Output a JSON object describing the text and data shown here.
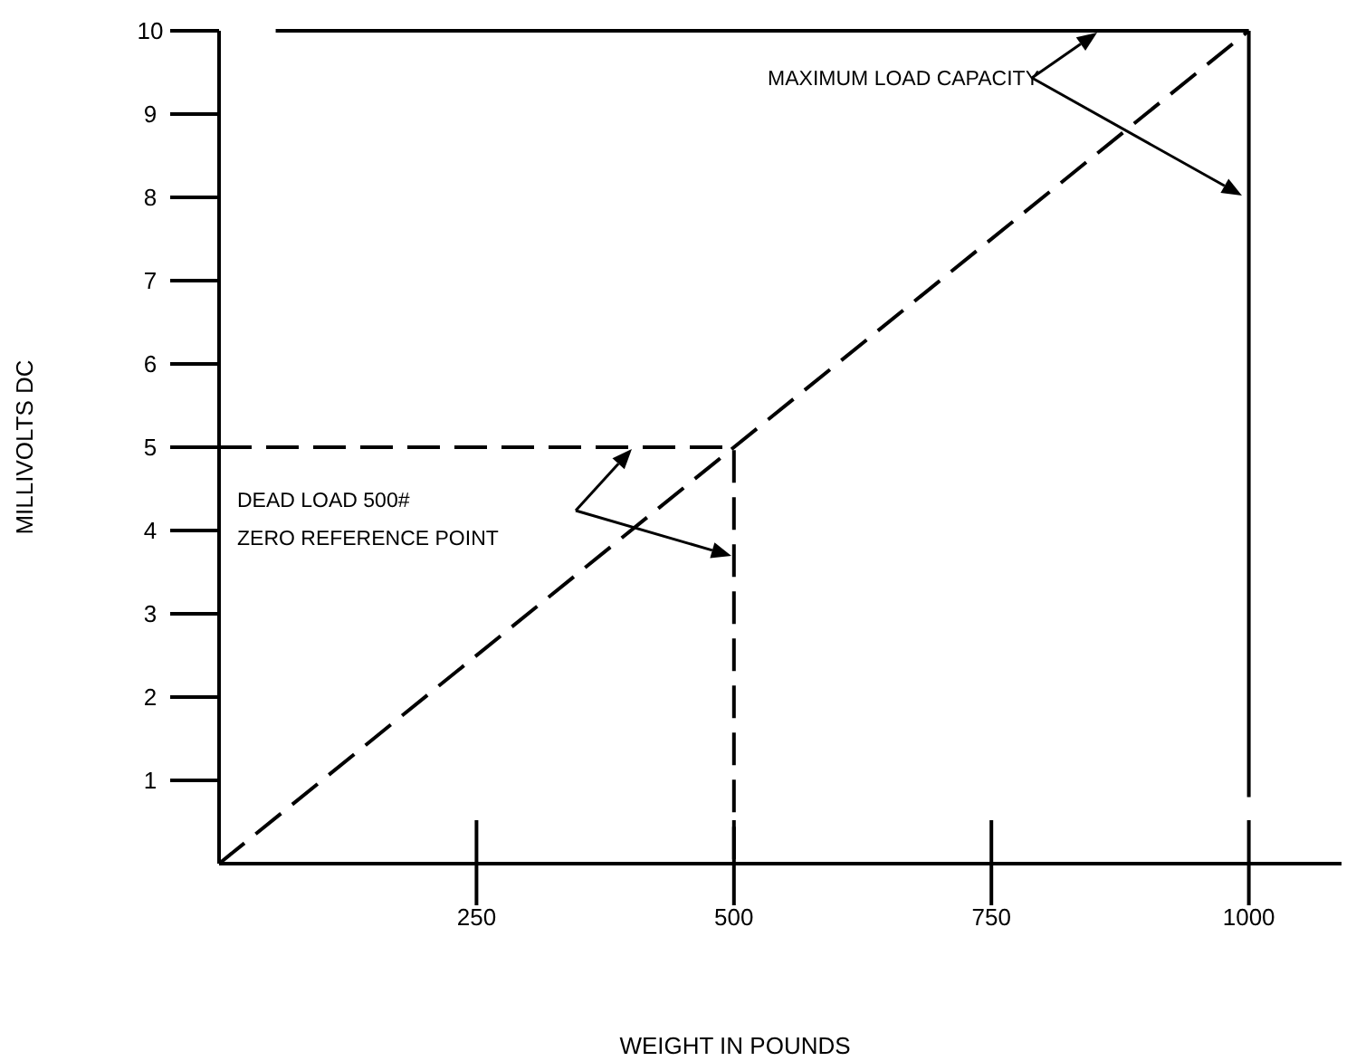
{
  "chart_data": {
    "type": "line",
    "xlabel": "WEIGHT IN POUNDS",
    "ylabel": "MILLIVOLTS DC",
    "xlim": [
      0,
      1090
    ],
    "ylim": [
      0,
      10
    ],
    "xticks": [
      250,
      500,
      750,
      1000
    ],
    "yticks": [
      1,
      2,
      3,
      4,
      5,
      6,
      7,
      8,
      9,
      10
    ],
    "grid": false,
    "series": [
      {
        "color": "#000000",
        "line_style": "dashed",
        "x": [
          0,
          1000
        ],
        "values": [
          0,
          10
        ]
      },
      {
        "color": "#000000",
        "line_style": "dashed",
        "x": [
          0,
          500,
          500
        ],
        "values": [
          5,
          5,
          0
        ]
      },
      {
        "color": "#000000",
        "line_style": "solid",
        "x": [
          55,
          1000
        ],
        "values": [
          10,
          10
        ]
      },
      {
        "color": "#000000",
        "line_style": "solid",
        "x": [
          1000,
          1000
        ],
        "values": [
          10,
          0.8
        ]
      }
    ],
    "annotations": [
      "MAXIMUM LOAD CAPACITY",
      "DEAD LOAD 500#",
      "ZERO REFERENCE POINT"
    ]
  }
}
